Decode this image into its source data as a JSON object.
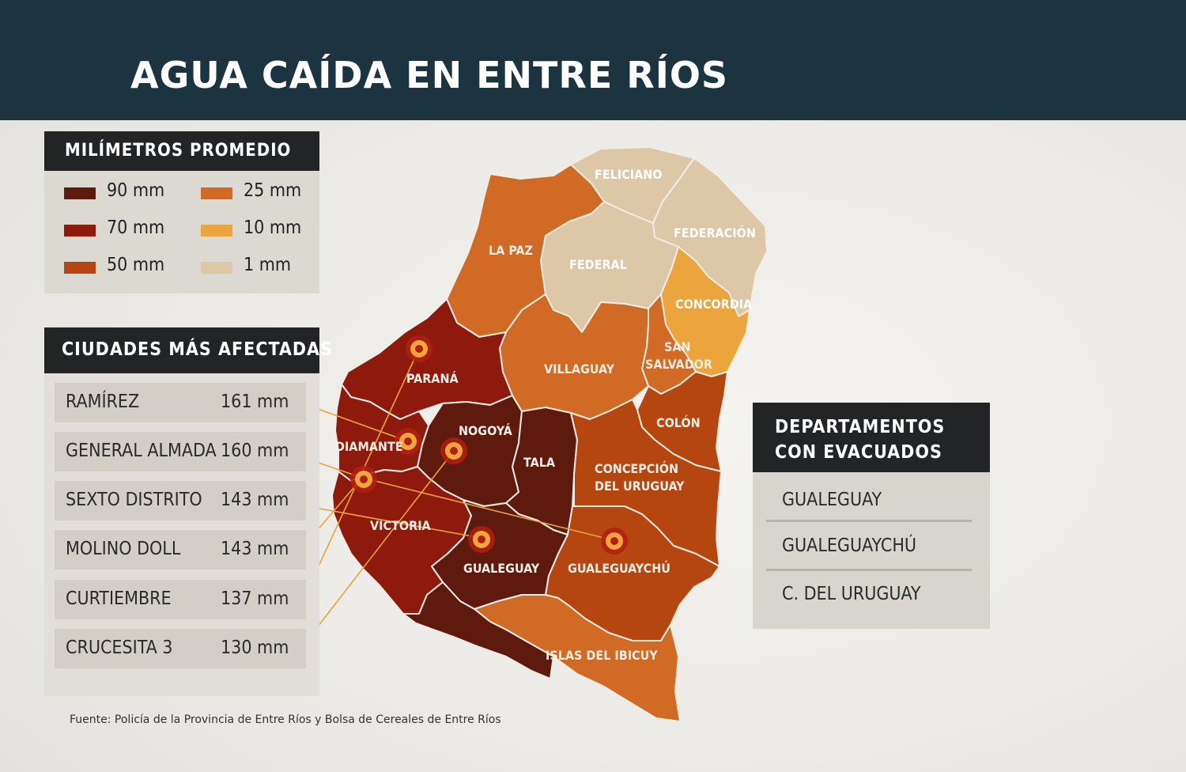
{
  "title": "AGUA CAÍDA EN ENTRE RÍOS",
  "legend": {
    "title": "MILÍMETROS PROMEDIO",
    "items": [
      {
        "label": "90 mm",
        "color": "#5e1a0c"
      },
      {
        "label": "70 mm",
        "color": "#8e1a0d"
      },
      {
        "label": "50 mm",
        "color": "#b5460f"
      },
      {
        "label": "25 mm",
        "color": "#d06a24"
      },
      {
        "label": "10 mm",
        "color": "#eca43c"
      },
      {
        "label": "1 mm",
        "color": "#dcc8a6"
      }
    ]
  },
  "cities": {
    "title": "CIUDADES MÁS AFECTADAS",
    "rows": [
      {
        "name": "RAMÍREZ",
        "value": "161 mm"
      },
      {
        "name": "GENERAL ALMADA",
        "value": "160 mm"
      },
      {
        "name": "SEXTO DISTRITO",
        "value": "143 mm"
      },
      {
        "name": "MOLINO DOLL",
        "value": "143 mm"
      },
      {
        "name": "CURTIEMBRE",
        "value": "137 mm"
      },
      {
        "name": "CRUCESITA 3",
        "value": "130 mm"
      }
    ]
  },
  "evacuated": {
    "title_line1": "DEPARTAMENTOS",
    "title_line2": "CON EVACUADOS",
    "items": [
      "GUALEGUAY",
      "GUALEGUAYCHÚ",
      "C. DEL URUGUAY"
    ]
  },
  "departments": {
    "feliciano": "FELICIANO",
    "federacion": "FEDERACIÓN",
    "la_paz": "LA PAZ",
    "federal": "FEDERAL",
    "concordia": "CONCORDIA",
    "san_salvador_1": "SAN",
    "san_salvador_2": "SALVADOR",
    "villaguay": "VILLAGUAY",
    "parana": "PARANÁ",
    "colon": "COLÓN",
    "nogoya": "NOGOYÁ",
    "diamante": "DIAMANTE",
    "tala": "TALA",
    "concepcion_1": "CONCEPCIÓN",
    "concepcion_2": "DEL URUGUAY",
    "victoria": "VICTORIA",
    "gualeguay": "GUALEGUAY",
    "gualeguaychu": "GUALEGUAYCHÚ",
    "islas": "ISLAS DEL IBICUY"
  },
  "source": "Fuente: Policía de la Provincia de Entre Ríos y Bolsa de Cereales de Entre Ríos"
}
